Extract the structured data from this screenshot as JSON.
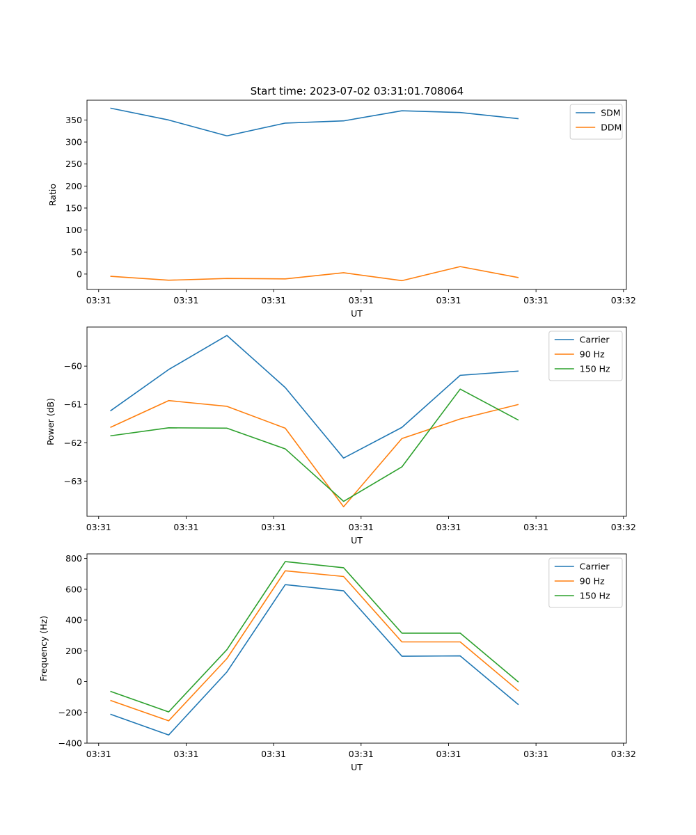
{
  "figure_title": "Start time: 2023-07-02 03:31:01.708064",
  "colors": {
    "blue": "#1f77b4",
    "orange": "#ff7f0e",
    "green": "#2ca02c"
  },
  "chart_data": [
    {
      "type": "line",
      "title": "Start time: 2023-07-02 03:31:01.708064",
      "xlabel": "UT",
      "ylabel": "Ratio",
      "xlim": [
        -0.4,
        8.85
      ],
      "ylim": [
        -35,
        395
      ],
      "xticks": [
        -0.2,
        1.3,
        2.8,
        4.3,
        5.8,
        7.3,
        8.8
      ],
      "xtick_labels": [
        "03:31",
        "03:31",
        "03:31",
        "03:31",
        "03:31",
        "03:31",
        "03:32"
      ],
      "yticks": [
        0,
        50,
        100,
        150,
        200,
        250,
        300,
        350
      ],
      "ytick_labels": [
        "0",
        "50",
        "100",
        "150",
        "200",
        "250",
        "300",
        "350"
      ],
      "legend": "top-right",
      "x": [
        0,
        1,
        2,
        3,
        4,
        5,
        6,
        7
      ],
      "series": [
        {
          "name": "SDM",
          "color": "#1f77b4",
          "values": [
            377,
            350,
            314,
            343,
            348,
            371,
            367,
            353
          ]
        },
        {
          "name": "DDM",
          "color": "#ff7f0e",
          "values": [
            -5,
            -14,
            -10,
            -11,
            3,
            -15,
            17,
            -8
          ]
        }
      ]
    },
    {
      "type": "line",
      "title": "",
      "xlabel": "UT",
      "ylabel": "Power (dB)",
      "xlim": [
        -0.4,
        8.85
      ],
      "ylim": [
        -63.92,
        -58.98
      ],
      "xticks": [
        -0.2,
        1.3,
        2.8,
        4.3,
        5.8,
        7.3,
        8.8
      ],
      "xtick_labels": [
        "03:31",
        "03:31",
        "03:31",
        "03:31",
        "03:31",
        "03:31",
        "03:32"
      ],
      "yticks": [
        -63,
        -62,
        -61,
        -60
      ],
      "ytick_labels": [
        "−63",
        "−62",
        "−61",
        "−60"
      ],
      "legend": "top-right",
      "x": [
        0,
        1,
        2,
        3,
        4,
        5,
        6,
        7
      ],
      "series": [
        {
          "name": "Carrier",
          "color": "#1f77b4",
          "values": [
            -61.17,
            -60.09,
            -59.2,
            -60.56,
            -62.4,
            -61.6,
            -60.24,
            -60.13
          ]
        },
        {
          "name": "90 Hz",
          "color": "#ff7f0e",
          "values": [
            -61.6,
            -60.9,
            -61.05,
            -61.62,
            -63.67,
            -61.89,
            -61.38,
            -61.0
          ]
        },
        {
          "name": "150 Hz",
          "color": "#2ca02c",
          "values": [
            -61.82,
            -61.61,
            -61.62,
            -62.16,
            -63.53,
            -62.63,
            -60.6,
            -61.41
          ]
        }
      ]
    },
    {
      "type": "line",
      "title": "",
      "xlabel": "UT",
      "ylabel": "Frequency (Hz)",
      "xlim": [
        -0.4,
        8.85
      ],
      "ylim": [
        -400,
        830
      ],
      "xticks": [
        -0.2,
        1.3,
        2.8,
        4.3,
        5.8,
        7.3,
        8.8
      ],
      "xtick_labels": [
        "03:31",
        "03:31",
        "03:31",
        "03:31",
        "03:31",
        "03:31",
        "03:32"
      ],
      "yticks": [
        -400,
        -200,
        0,
        200,
        400,
        600,
        800
      ],
      "ytick_labels": [
        "−400",
        "−200",
        "0",
        "200",
        "400",
        "600",
        "800"
      ],
      "legend": "top-right",
      "x": [
        0,
        1,
        2,
        3,
        4,
        5,
        6,
        7
      ],
      "series": [
        {
          "name": "Carrier",
          "color": "#1f77b4",
          "values": [
            -212,
            -347,
            63,
            630,
            590,
            165,
            167,
            -150
          ]
        },
        {
          "name": "90 Hz",
          "color": "#ff7f0e",
          "values": [
            -122,
            -255,
            150,
            720,
            683,
            258,
            258,
            -60
          ]
        },
        {
          "name": "150 Hz",
          "color": "#2ca02c",
          "values": [
            -63,
            -197,
            208,
            780,
            740,
            315,
            315,
            -3
          ]
        }
      ]
    }
  ]
}
